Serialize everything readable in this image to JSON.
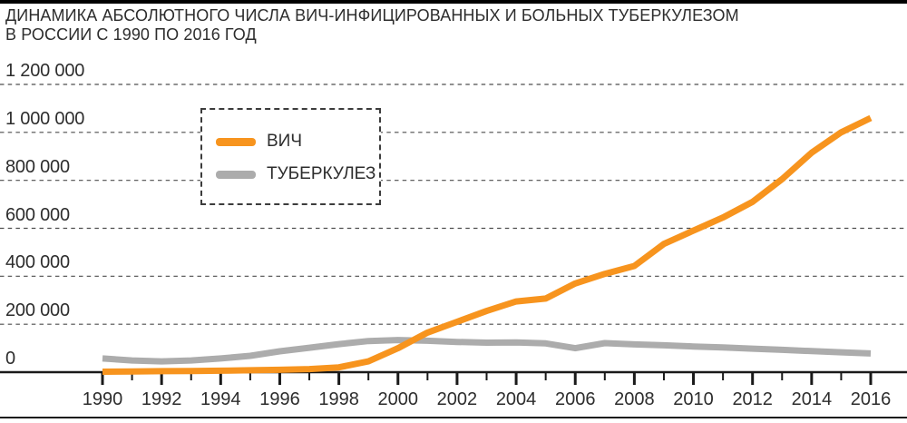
{
  "header": {
    "line1": "ДИНАМИКА АБСОЛЮТНОГО ЧИСЛА ВИЧ-ИНФИЦИРОВАННЫХ И БОЛЬНЫХ ТУБЕРКУЛЕЗОМ",
    "line2": "В РОССИИ С 1990 ПО 2016 ГОД"
  },
  "legend": {
    "items": [
      {
        "label": "ВИЧ",
        "color": "#F7941E"
      },
      {
        "label": "ТУБЕРКУЛЕЗ",
        "color": "#ACACAC"
      }
    ]
  },
  "colors": {
    "hiv_line": "#F7941E",
    "tb_line": "#ACACAC",
    "gridline": "#4d4d4d",
    "axis": "#1a1a1a",
    "text": "#2d2d2d",
    "top_bar": "#000000"
  },
  "chart_data": {
    "type": "line",
    "title": "ДИНАМИКА АБСОЛЮТНОГО ЧИСЛА ВИЧ-ИНФИЦИРОВАННЫХ И БОЛЬНЫХ ТУБЕРКУЛЕЗОМ В РОССИИ С 1990 ПО 2016 ГОД",
    "x": [
      1990,
      1991,
      1992,
      1993,
      1994,
      1995,
      1996,
      1997,
      1998,
      1999,
      2000,
      2001,
      2002,
      2003,
      2004,
      2005,
      2006,
      2007,
      2008,
      2009,
      2010,
      2011,
      2012,
      2013,
      2014,
      2015,
      2016
    ],
    "series": [
      {
        "name": "ВИЧ",
        "color": "#F7941E",
        "values": [
          2000,
          3000,
          4000,
          5000,
          6000,
          8000,
          10000,
          13000,
          20000,
          45000,
          100000,
          165000,
          210000,
          255000,
          295000,
          307000,
          370000,
          410000,
          443000,
          535000,
          590000,
          645000,
          710000,
          805000,
          915000,
          1000000,
          1060000
        ]
      },
      {
        "name": "ТУБЕРКУЛЕЗ",
        "color": "#ACACAC",
        "values": [
          57000,
          49000,
          45000,
          49000,
          57000,
          68000,
          87000,
          102000,
          117000,
          130000,
          134000,
          131000,
          126000,
          123000,
          124000,
          120000,
          100000,
          121000,
          116000,
          112000,
          107000,
          103000,
          98000,
          93000,
          88000,
          83000,
          78000
        ]
      }
    ],
    "ylim": [
      0,
      1200000
    ],
    "yticks": [
      {
        "value": 0,
        "label": "0"
      },
      {
        "value": 200000,
        "label": "200 000"
      },
      {
        "value": 400000,
        "label": "400 000"
      },
      {
        "value": 600000,
        "label": "600 000"
      },
      {
        "value": 800000,
        "label": "800 000"
      },
      {
        "value": 1000000,
        "label": "1 000 000"
      },
      {
        "value": 1200000,
        "label": "1 200 000"
      }
    ],
    "xticks_labeled": [
      1990,
      1992,
      1994,
      1996,
      1998,
      2000,
      2002,
      2004,
      2006,
      2008,
      2010,
      2012,
      2014,
      2016
    ],
    "grid": "horizontal dashed",
    "legend_position": "upper-left-inside"
  }
}
